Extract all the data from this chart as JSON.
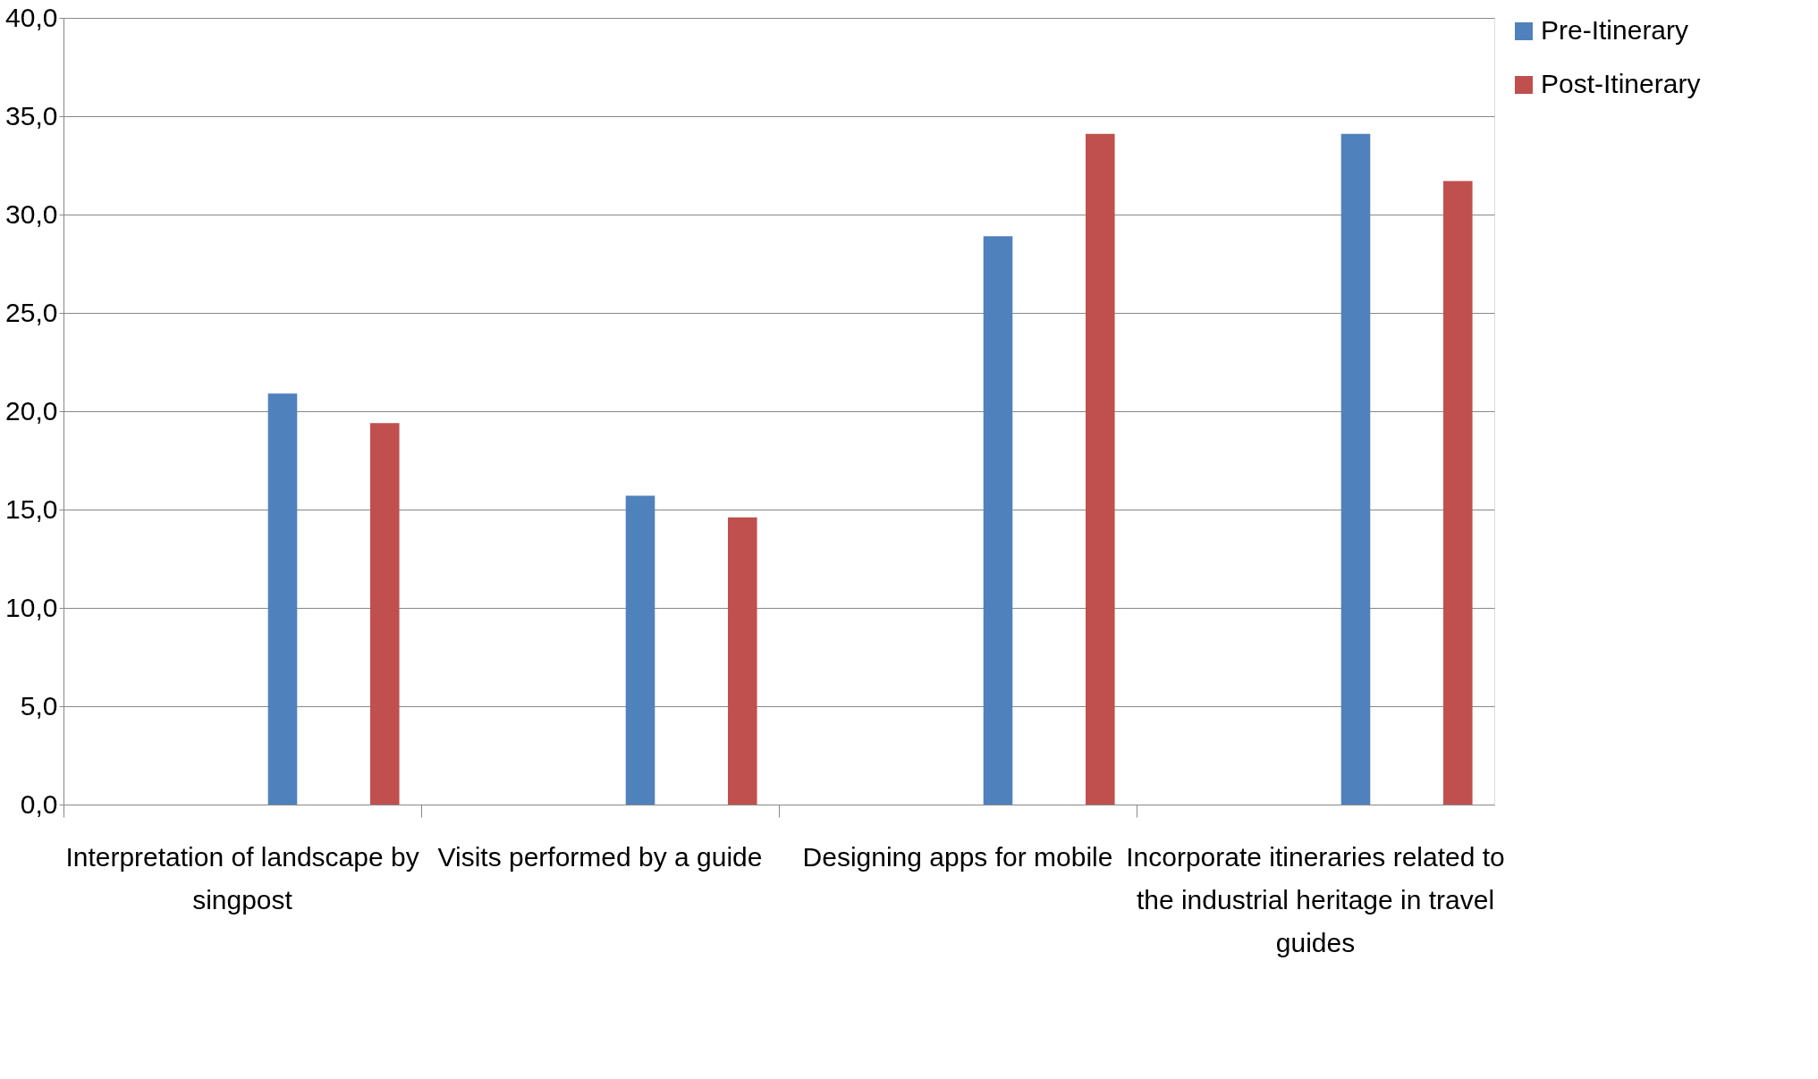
{
  "chart_data": {
    "type": "bar",
    "categories": [
      "Interpretation of landscape by singpost",
      "Visits performed by a guide",
      "Designing apps for mobile",
      "Incorporate itineraries related to the industrial heritage in travel guides"
    ],
    "series": [
      {
        "name": "Pre-Itinerary",
        "color": "#4f81bd",
        "values": [
          20.9,
          15.7,
          28.9,
          34.1
        ]
      },
      {
        "name": "Post-Itinerary",
        "color": "#c0504d",
        "values": [
          19.4,
          14.6,
          34.1,
          31.7
        ]
      }
    ],
    "ylim": [
      0,
      40
    ],
    "yticks": [
      {
        "value": 0,
        "label": "0,0"
      },
      {
        "value": 5,
        "label": "5,0"
      },
      {
        "value": 10,
        "label": "10,0"
      },
      {
        "value": 15,
        "label": "15,0"
      },
      {
        "value": 20,
        "label": "20,0"
      },
      {
        "value": 25,
        "label": "25,0"
      },
      {
        "value": 30,
        "label": "30,0"
      },
      {
        "value": 35,
        "label": "35,0"
      },
      {
        "value": 40,
        "label": "40,0"
      }
    ],
    "grid": "y",
    "legend": "right"
  }
}
